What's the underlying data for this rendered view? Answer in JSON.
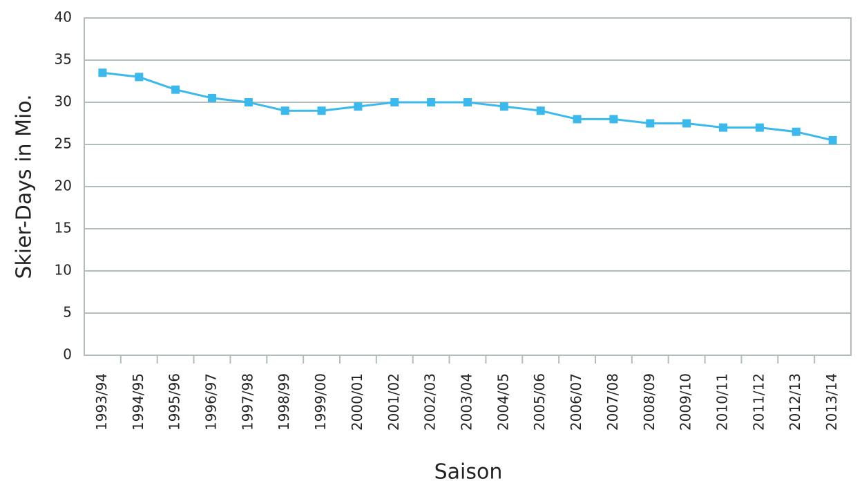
{
  "chart_data": {
    "type": "line",
    "x_label": "Saison",
    "y_label": "Skier-Days in Mio.",
    "categories": [
      "1993/94",
      "1994/95",
      "1995/96",
      "1996/97",
      "1997/98",
      "1998/99",
      "1999/00",
      "2000/01",
      "2001/02",
      "2002/03",
      "2003/04",
      "2004/05",
      "2005/06",
      "2006/07",
      "2007/08",
      "2008/09",
      "2009/10",
      "2010/11",
      "2011/12",
      "2012/13",
      "2013/14"
    ],
    "values": [
      33.5,
      33,
      31.5,
      30.5,
      30,
      29,
      29,
      29.5,
      30,
      30,
      30,
      29.5,
      29,
      28,
      28,
      27.5,
      27.5,
      27,
      27,
      26.5,
      25.5
    ],
    "color": "#3bb9ec",
    "ylim": [
      0,
      40
    ],
    "yticks": [
      0,
      5,
      10,
      15,
      20,
      25,
      30,
      35,
      40
    ],
    "grid": true
  }
}
